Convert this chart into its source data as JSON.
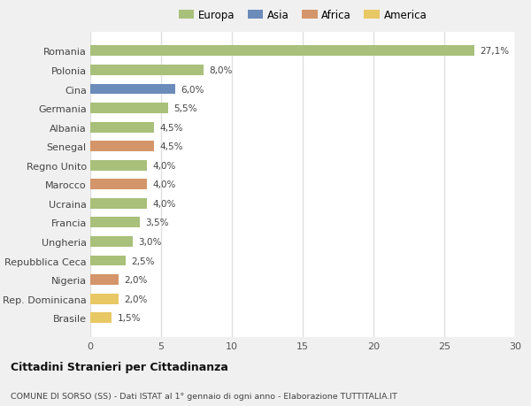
{
  "categories": [
    "Romania",
    "Polonia",
    "Cina",
    "Germania",
    "Albania",
    "Senegal",
    "Regno Unito",
    "Marocco",
    "Ucraina",
    "Francia",
    "Ungheria",
    "Repubblica Ceca",
    "Nigeria",
    "Rep. Dominicana",
    "Brasile"
  ],
  "values": [
    27.1,
    8.0,
    6.0,
    5.5,
    4.5,
    4.5,
    4.0,
    4.0,
    4.0,
    3.5,
    3.0,
    2.5,
    2.0,
    2.0,
    1.5
  ],
  "labels": [
    "27,1%",
    "8,0%",
    "6,0%",
    "5,5%",
    "4,5%",
    "4,5%",
    "4,0%",
    "4,0%",
    "4,0%",
    "3,5%",
    "3,0%",
    "2,5%",
    "2,0%",
    "2,0%",
    "1,5%"
  ],
  "colors": [
    "#a8c07a",
    "#a8c07a",
    "#6b8cba",
    "#a8c07a",
    "#a8c07a",
    "#d4956a",
    "#a8c07a",
    "#d4956a",
    "#a8c07a",
    "#a8c07a",
    "#a8c07a",
    "#a8c07a",
    "#d4956a",
    "#e8c865",
    "#e8c865"
  ],
  "legend": {
    "Europa": "#a8c07a",
    "Asia": "#6b8cba",
    "Africa": "#d4956a",
    "America": "#e8c865"
  },
  "xlim": [
    0,
    30
  ],
  "xticks": [
    0,
    5,
    10,
    15,
    20,
    25,
    30
  ],
  "title": "Cittadini Stranieri per Cittadinanza",
  "subtitle": "COMUNE DI SORSO (SS) - Dati ISTAT al 1° gennaio di ogni anno - Elaborazione TUTTITALIA.IT",
  "outer_background": "#f0f0f0",
  "plot_background": "#ffffff",
  "bar_height": 0.55,
  "grid_color": "#e0e0e0"
}
